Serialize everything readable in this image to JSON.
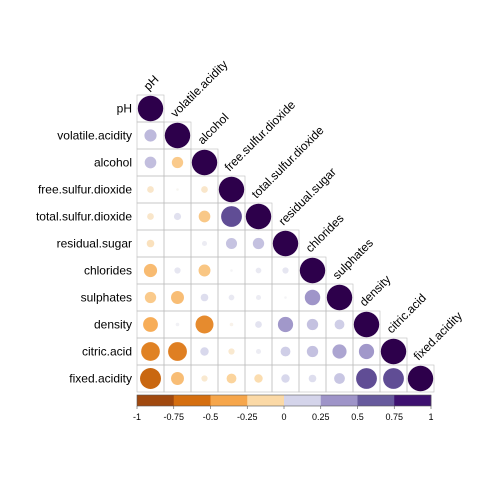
{
  "chart_data": {
    "type": "heatmap",
    "subtype": "correlation-circle-lower",
    "variables": [
      "pH",
      "volatile.acidity",
      "alcohol",
      "free.sulfur.dioxide",
      "total.sulfur.dioxide",
      "residual.sugar",
      "chlorides",
      "sulphates",
      "density",
      "citric.acid",
      "fixed.acidity"
    ],
    "matrix": [
      [
        1,
        0.23,
        0.21,
        -0.07,
        -0.07,
        -0.09,
        -0.27,
        -0.2,
        -0.34,
        -0.54,
        -0.68
      ],
      [
        0.23,
        1,
        -0.2,
        -0.01,
        0.08,
        0.0,
        0.06,
        -0.26,
        0.02,
        -0.55,
        -0.26
      ],
      [
        0.21,
        -0.2,
        1,
        -0.07,
        -0.21,
        0.04,
        -0.22,
        0.09,
        -0.5,
        0.11,
        -0.06
      ],
      [
        -0.07,
        -0.01,
        -0.07,
        1,
        0.67,
        0.19,
        0.01,
        0.05,
        -0.02,
        -0.06,
        -0.15
      ],
      [
        -0.07,
        0.08,
        -0.21,
        0.67,
        1,
        0.2,
        0.05,
        0.04,
        0.07,
        0.04,
        -0.11
      ],
      [
        -0.09,
        0.0,
        0.04,
        0.19,
        0.2,
        1,
        0.06,
        0.01,
        0.36,
        0.15,
        0.11
      ],
      [
        -0.27,
        0.06,
        -0.22,
        0.01,
        0.05,
        0.06,
        1,
        0.37,
        0.2,
        0.2,
        0.09
      ],
      [
        -0.2,
        -0.26,
        0.09,
        0.05,
        0.04,
        0.01,
        0.37,
        1,
        0.15,
        0.31,
        0.18
      ],
      [
        -0.34,
        0.02,
        -0.5,
        -0.02,
        0.07,
        0.36,
        0.2,
        0.15,
        1,
        0.36,
        0.67
      ],
      [
        -0.54,
        -0.55,
        0.11,
        -0.06,
        0.04,
        0.15,
        0.2,
        0.31,
        0.36,
        1,
        0.67
      ],
      [
        -0.68,
        -0.26,
        -0.06,
        -0.15,
        -0.11,
        0.11,
        0.09,
        0.18,
        0.67,
        0.67,
        1
      ]
    ],
    "colorbar": {
      "range": [
        -1,
        1
      ],
      "ticks": [
        "-1",
        "-0.75",
        "-0.5",
        "-0.25",
        "0",
        "0.25",
        "0.5",
        "0.75",
        "1"
      ],
      "colors": [
        "#a0490f",
        "#d56f10",
        "#f6a64b",
        "#fbd9a6",
        "#d4d4ea",
        "#9e94c8",
        "#675a9d",
        "#3e1170"
      ]
    }
  }
}
